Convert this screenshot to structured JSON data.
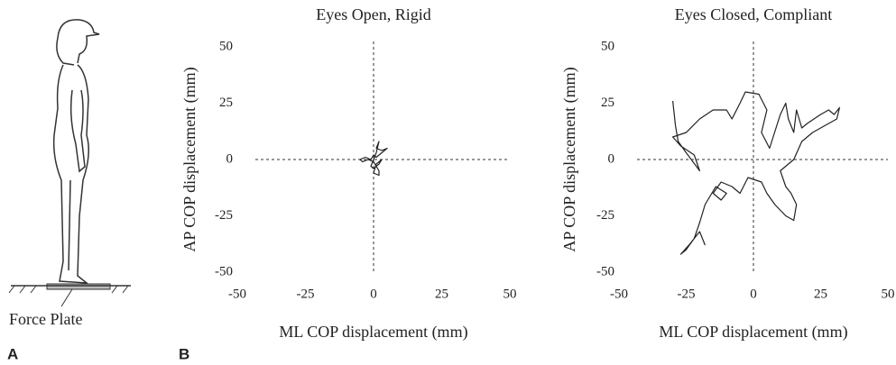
{
  "chart_data": [
    {
      "type": "line",
      "title": "Eyes Open, Rigid",
      "xlabel": "ML COP displacement (mm)",
      "ylabel": "AP COP displacement (mm)",
      "xlim": [
        -50,
        50
      ],
      "ylim": [
        -50,
        50
      ],
      "xticks": [
        -50,
        -25,
        0,
        25,
        50
      ],
      "yticks": [
        -50,
        -25,
        0,
        25,
        50
      ],
      "crosshair": true,
      "color": "#222222",
      "x": [
        0,
        1,
        2,
        1,
        3,
        5,
        3,
        1,
        0,
        -1,
        -3,
        -5,
        -4,
        -2,
        0,
        1,
        2,
        2,
        0,
        1,
        3,
        2,
        0,
        -1,
        0
      ],
      "values": [
        0,
        3,
        8,
        5,
        4,
        5,
        3,
        1,
        2,
        0,
        1,
        0,
        -1,
        0,
        -1,
        -3,
        -5,
        -7,
        -6,
        -2,
        0,
        -2,
        -4,
        -3,
        0
      ]
    },
    {
      "type": "line",
      "title": "Eyes Closed, Compliant",
      "xlabel": "ML COP displacement (mm)",
      "ylabel": "AP COP displacement (mm)",
      "xlim": [
        -50,
        50
      ],
      "ylim": [
        -50,
        50
      ],
      "xticks": [
        -50,
        -25,
        0,
        25,
        50
      ],
      "yticks": [
        -50,
        -25,
        0,
        25,
        50
      ],
      "crosshair": true,
      "color": "#222222",
      "x": [
        -30,
        -29,
        -28,
        -25,
        -20,
        -22,
        -27,
        -30,
        -25,
        -20,
        -15,
        -10,
        -8,
        -5,
        -3,
        2,
        5,
        3,
        6,
        10,
        12,
        13,
        15,
        16,
        18,
        20,
        25,
        28,
        30,
        32,
        31,
        28,
        22,
        18,
        15,
        10,
        12,
        14,
        16,
        15,
        12,
        8,
        5,
        3,
        -2,
        -5,
        -8,
        -12,
        -15,
        -12,
        -10,
        -14,
        -18,
        -20,
        -22,
        -25,
        -27,
        -24,
        -20,
        -18
      ],
      "values": [
        26,
        15,
        8,
        3,
        -5,
        2,
        6,
        10,
        12,
        18,
        22,
        22,
        18,
        25,
        30,
        29,
        22,
        12,
        5,
        20,
        25,
        18,
        12,
        22,
        14,
        16,
        20,
        22,
        20,
        23,
        18,
        16,
        12,
        8,
        0,
        -5,
        -12,
        -15,
        -20,
        -27,
        -25,
        -20,
        -15,
        -10,
        -8,
        -15,
        -12,
        -10,
        -15,
        -18,
        -15,
        -12,
        -20,
        -28,
        -35,
        -40,
        -42,
        -38,
        -32,
        -38
      ]
    }
  ],
  "illustration_label": "Force Plate",
  "panel_labels": [
    "A",
    "B"
  ]
}
